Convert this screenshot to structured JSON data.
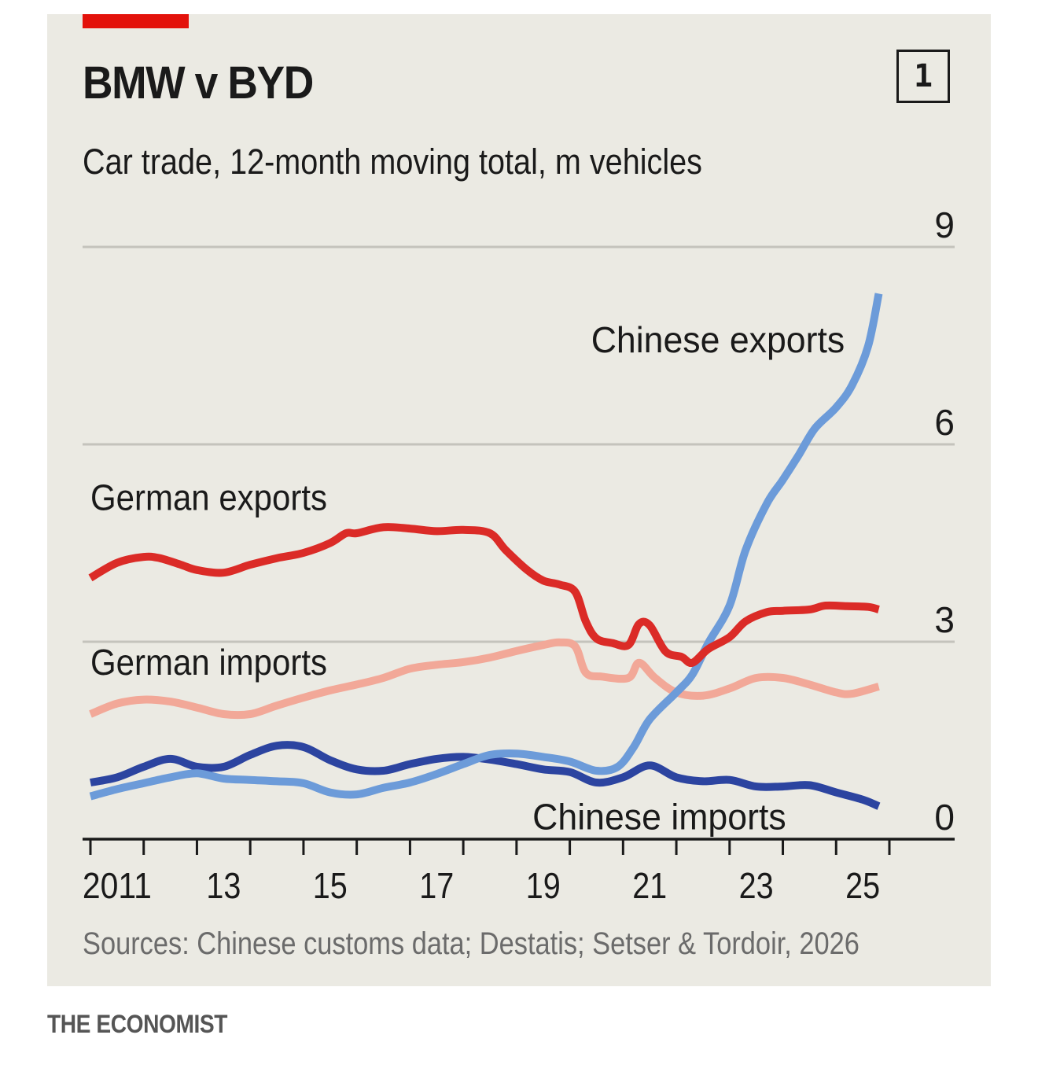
{
  "header": {
    "title": "BMW v BYD",
    "subtitle": "Car trade, 12-month moving total, m vehicles",
    "chart_number": "1"
  },
  "footer": {
    "source": "Sources: Chinese customs data; Destatis; Setser & Tordoir, 2026",
    "brand": "THE ECONOMIST"
  },
  "colors": {
    "background": "#ebeae3",
    "accent_tag": "#e3120b",
    "german_exports": "#db2b27",
    "german_imports": "#f2a898",
    "chinese_exports": "#6c9bd9",
    "chinese_imports": "#2c44a0",
    "gridline": "#c4c3bc",
    "axis": "#1a1a1a"
  },
  "chart_data": {
    "type": "line",
    "title": "BMW v BYD",
    "subtitle": "Car trade, 12-month moving total, m vehicles",
    "xlabel": "",
    "ylabel": "m vehicles",
    "xlim": [
      2011,
      2026
    ],
    "ylim": [
      0,
      9
    ],
    "yticks": [
      0,
      3,
      6,
      9
    ],
    "ytick_labels": [
      "0",
      "3",
      "6",
      "9"
    ],
    "ytick_side": "right",
    "xtick_years": [
      2011,
      2012,
      2013,
      2014,
      2015,
      2016,
      2017,
      2018,
      2019,
      2020,
      2021,
      2022,
      2023,
      2024,
      2025,
      2026
    ],
    "xtick_labels": [
      {
        "year": 2011,
        "label": "2011"
      },
      {
        "year": 2013,
        "label": "13"
      },
      {
        "year": 2015,
        "label": "15"
      },
      {
        "year": 2017,
        "label": "17"
      },
      {
        "year": 2019,
        "label": "19"
      },
      {
        "year": 2021,
        "label": "21"
      },
      {
        "year": 2023,
        "label": "23"
      },
      {
        "year": 2025,
        "label": "25"
      }
    ],
    "grid": true,
    "legend": "inline labels",
    "series": [
      {
        "name": "German exports",
        "label_anchor": {
          "x": 2011.0,
          "y": 5.0
        },
        "x": [
          2011.0,
          2011.5,
          2012.0,
          2012.3,
          2012.7,
          2013.0,
          2013.5,
          2014.0,
          2014.5,
          2015.0,
          2015.5,
          2015.8,
          2016.0,
          2016.5,
          2017.0,
          2017.5,
          2018.0,
          2018.5,
          2018.8,
          2019.2,
          2019.5,
          2019.8,
          2020.1,
          2020.3,
          2020.5,
          2020.8,
          2021.1,
          2021.3,
          2021.5,
          2021.8,
          2022.1,
          2022.3,
          2022.6,
          2023.0,
          2023.3,
          2023.7,
          2024.0,
          2024.5,
          2024.8,
          2025.2,
          2025.6,
          2025.8
        ],
        "values": [
          3.97,
          4.2,
          4.29,
          4.27,
          4.17,
          4.09,
          4.05,
          4.17,
          4.27,
          4.35,
          4.5,
          4.65,
          4.65,
          4.74,
          4.72,
          4.68,
          4.7,
          4.65,
          4.39,
          4.09,
          3.93,
          3.87,
          3.76,
          3.31,
          3.05,
          2.98,
          2.95,
          3.27,
          3.25,
          2.85,
          2.77,
          2.68,
          2.89,
          3.07,
          3.31,
          3.45,
          3.47,
          3.49,
          3.55,
          3.54,
          3.53,
          3.49
        ]
      },
      {
        "name": "German imports",
        "label_anchor": {
          "x": 2011.0,
          "y": 2.5
        },
        "x": [
          2011.0,
          2011.5,
          2012.0,
          2012.5,
          2013.0,
          2013.5,
          2014.0,
          2014.5,
          2015.0,
          2015.5,
          2016.0,
          2016.5,
          2017.0,
          2017.5,
          2018.0,
          2018.5,
          2019.0,
          2019.5,
          2019.8,
          2020.1,
          2020.3,
          2020.6,
          2021.1,
          2021.3,
          2021.6,
          2022.0,
          2022.5,
          2023.0,
          2023.5,
          2024.0,
          2024.5,
          2025.0,
          2025.3,
          2025.8
        ],
        "values": [
          1.9,
          2.06,
          2.12,
          2.09,
          2.0,
          1.9,
          1.9,
          2.03,
          2.15,
          2.26,
          2.35,
          2.45,
          2.59,
          2.65,
          2.69,
          2.76,
          2.86,
          2.95,
          2.99,
          2.93,
          2.53,
          2.47,
          2.45,
          2.68,
          2.45,
          2.23,
          2.18,
          2.29,
          2.45,
          2.45,
          2.35,
          2.23,
          2.21,
          2.32
        ]
      },
      {
        "name": "Chinese exports",
        "label_anchor": {
          "x": 2020.4,
          "y": 7.4
        },
        "x": [
          2011.0,
          2011.5,
          2012.0,
          2012.5,
          2013.0,
          2013.5,
          2014.0,
          2014.5,
          2015.0,
          2015.5,
          2016.0,
          2016.5,
          2017.0,
          2017.5,
          2018.0,
          2018.5,
          2019.0,
          2019.5,
          2020.0,
          2020.5,
          2020.9,
          2021.2,
          2021.5,
          2022.0,
          2022.3,
          2022.6,
          2023.0,
          2023.3,
          2023.7,
          2024.0,
          2024.3,
          2024.6,
          2025.0,
          2025.3,
          2025.6,
          2025.8
        ],
        "values": [
          0.65,
          0.76,
          0.85,
          0.94,
          1.0,
          0.92,
          0.9,
          0.88,
          0.85,
          0.71,
          0.68,
          0.78,
          0.86,
          0.99,
          1.14,
          1.28,
          1.3,
          1.25,
          1.18,
          1.04,
          1.1,
          1.4,
          1.82,
          2.23,
          2.5,
          2.98,
          3.55,
          4.39,
          5.1,
          5.46,
          5.84,
          6.24,
          6.56,
          6.9,
          7.49,
          8.29
        ]
      },
      {
        "name": "Chinese imports",
        "label_anchor": {
          "x": 2019.3,
          "y": 0.15
        },
        "x": [
          2011.0,
          2011.5,
          2012.0,
          2012.5,
          2013.0,
          2013.5,
          2014.0,
          2014.5,
          2015.0,
          2015.5,
          2016.0,
          2016.5,
          2017.0,
          2017.5,
          2018.0,
          2018.5,
          2019.0,
          2019.5,
          2020.0,
          2020.5,
          2021.0,
          2021.5,
          2022.0,
          2022.5,
          2023.0,
          2023.5,
          2024.0,
          2024.5,
          2025.0,
          2025.5,
          2025.8
        ],
        "values": [
          0.86,
          0.94,
          1.1,
          1.22,
          1.1,
          1.1,
          1.28,
          1.42,
          1.4,
          1.2,
          1.06,
          1.04,
          1.14,
          1.22,
          1.25,
          1.21,
          1.14,
          1.06,
          1.02,
          0.86,
          0.94,
          1.12,
          0.94,
          0.88,
          0.9,
          0.8,
          0.8,
          0.82,
          0.71,
          0.6,
          0.5
        ]
      }
    ]
  }
}
